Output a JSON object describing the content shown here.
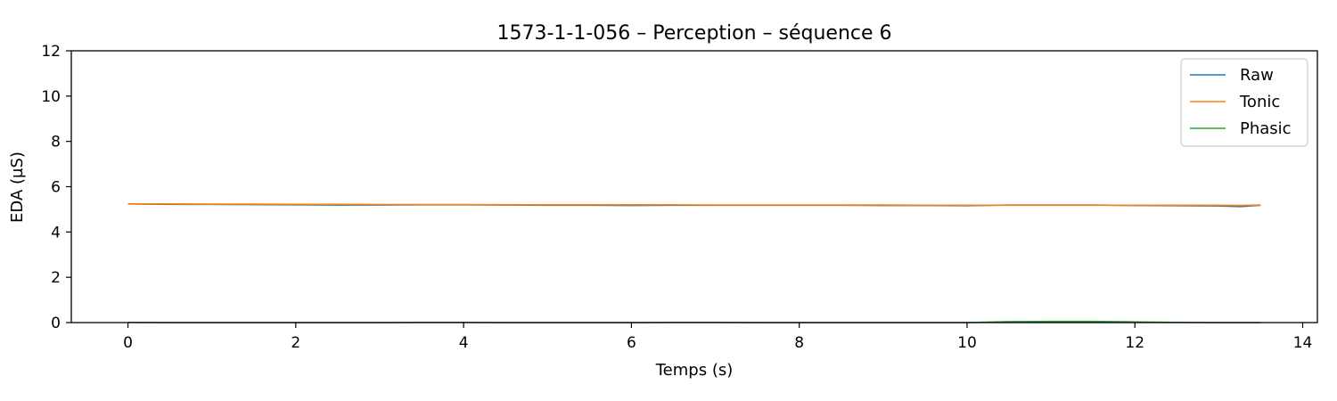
{
  "chart_data": {
    "type": "line",
    "title": "1573-1-1-056 – Perception – séquence 6",
    "xlabel": "Temps (s)",
    "ylabel": "EDA (µS)",
    "xlim": [
      -0.675,
      14.175
    ],
    "ylim": [
      0,
      12
    ],
    "xticks": [
      0,
      2,
      4,
      6,
      8,
      10,
      12,
      14
    ],
    "yticks": [
      0,
      2,
      4,
      6,
      8,
      10,
      12
    ],
    "grid": false,
    "legend_position": "top-right",
    "series": [
      {
        "name": "Raw",
        "color": "#1f77b4",
        "x": [
          0,
          0.5,
          1,
          1.5,
          2,
          2.5,
          3,
          3.5,
          4,
          4.5,
          5,
          5.5,
          6,
          6.5,
          7,
          7.5,
          8,
          8.5,
          9,
          9.5,
          10,
          10.5,
          11,
          11.5,
          12,
          12.5,
          13,
          13.25,
          13.5
        ],
        "y": [
          5.24,
          5.22,
          5.22,
          5.21,
          5.2,
          5.19,
          5.19,
          5.2,
          5.2,
          5.19,
          5.18,
          5.18,
          5.17,
          5.18,
          5.18,
          5.18,
          5.18,
          5.18,
          5.17,
          5.17,
          5.16,
          5.19,
          5.19,
          5.19,
          5.17,
          5.16,
          5.15,
          5.12,
          5.18
        ]
      },
      {
        "name": "Tonic",
        "color": "#ff7f0e",
        "x": [
          0,
          0.5,
          1,
          1.5,
          2,
          2.5,
          3,
          3.5,
          4,
          4.5,
          5,
          5.5,
          6,
          6.5,
          7,
          7.5,
          8,
          8.5,
          9,
          9.5,
          10,
          10.5,
          11,
          11.5,
          12,
          12.5,
          13,
          13.25,
          13.5
        ],
        "y": [
          5.24,
          5.24,
          5.23,
          5.23,
          5.22,
          5.22,
          5.21,
          5.21,
          5.21,
          5.2,
          5.2,
          5.2,
          5.2,
          5.2,
          5.19,
          5.19,
          5.19,
          5.19,
          5.19,
          5.18,
          5.18,
          5.18,
          5.18,
          5.18,
          5.18,
          5.18,
          5.18,
          5.17,
          5.19
        ]
      },
      {
        "name": "Phasic",
        "color": "#2ca02c",
        "x": [
          0,
          0.5,
          1,
          1.5,
          2,
          2.5,
          3,
          3.5,
          4,
          4.5,
          5,
          5.5,
          6,
          6.5,
          7,
          7.5,
          8,
          8.5,
          9,
          9.5,
          10,
          10.5,
          11,
          11.5,
          12,
          12.5,
          13,
          13.25,
          13.5
        ],
        "y": [
          0.01,
          0.0,
          0.0,
          0.0,
          0.0,
          0.0,
          0.0,
          0.01,
          0.01,
          0.0,
          0.0,
          0.0,
          0.0,
          0.01,
          0.01,
          0.0,
          0.0,
          0.0,
          0.0,
          0.0,
          0.0,
          0.04,
          0.05,
          0.05,
          0.03,
          0.01,
          0.0,
          0.0,
          0.0
        ]
      }
    ]
  }
}
